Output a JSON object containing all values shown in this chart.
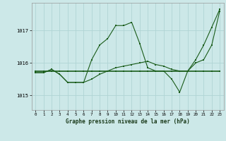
{
  "xlabel": "Graphe pression niveau de la mer (hPa)",
  "ylim": [
    1014.55,
    1017.85
  ],
  "xlim": [
    -0.5,
    23.5
  ],
  "yticks": [
    1015,
    1016,
    1017
  ],
  "xticks": [
    0,
    1,
    2,
    3,
    4,
    5,
    6,
    7,
    8,
    9,
    10,
    11,
    12,
    13,
    14,
    15,
    16,
    17,
    18,
    19,
    20,
    21,
    22,
    23
  ],
  "bg_color": "#cce8e8",
  "grid_color": "#b0d4d4",
  "line_color_1": "#1a5c1a",
  "line_color_2": "#1a5c1a",
  "line_color_3": "#1a5c1a",
  "series1_x": [
    0,
    1,
    2,
    3,
    4,
    5,
    6,
    7,
    8,
    9,
    10,
    11,
    12,
    13,
    14,
    15,
    16,
    17,
    18,
    19,
    20,
    21,
    22,
    23
  ],
  "series1_y": [
    1015.75,
    1015.75,
    1015.75,
    1015.75,
    1015.75,
    1015.75,
    1015.75,
    1015.75,
    1015.75,
    1015.75,
    1015.75,
    1015.75,
    1015.75,
    1015.75,
    1015.75,
    1015.75,
    1015.75,
    1015.75,
    1015.75,
    1015.75,
    1015.75,
    1015.75,
    1015.75,
    1015.75
  ],
  "series2_x": [
    0,
    1,
    2,
    3,
    4,
    5,
    6,
    7,
    8,
    9,
    10,
    11,
    12,
    13,
    14,
    15,
    16,
    17,
    18,
    19,
    20,
    21,
    22,
    23
  ],
  "series2_y": [
    1015.7,
    1015.7,
    1015.8,
    1015.65,
    1015.4,
    1015.4,
    1015.4,
    1015.5,
    1015.65,
    1015.75,
    1015.85,
    1015.9,
    1015.95,
    1016.0,
    1016.05,
    1015.95,
    1015.9,
    1015.8,
    1015.75,
    1015.75,
    1016.0,
    1016.1,
    1016.55,
    1017.6
  ],
  "series3_x": [
    0,
    1,
    2,
    3,
    4,
    5,
    6,
    7,
    8,
    9,
    10,
    11,
    12,
    13,
    14,
    15,
    16,
    17,
    18,
    19,
    20,
    21,
    22,
    23
  ],
  "series3_y": [
    1015.7,
    1015.7,
    1015.8,
    1015.65,
    1015.4,
    1015.4,
    1015.4,
    1016.1,
    1016.55,
    1016.75,
    1017.15,
    1017.15,
    1017.25,
    1016.6,
    1015.85,
    1015.75,
    1015.75,
    1015.5,
    1015.1,
    1015.75,
    1016.1,
    1016.55,
    1017.1,
    1017.65
  ]
}
